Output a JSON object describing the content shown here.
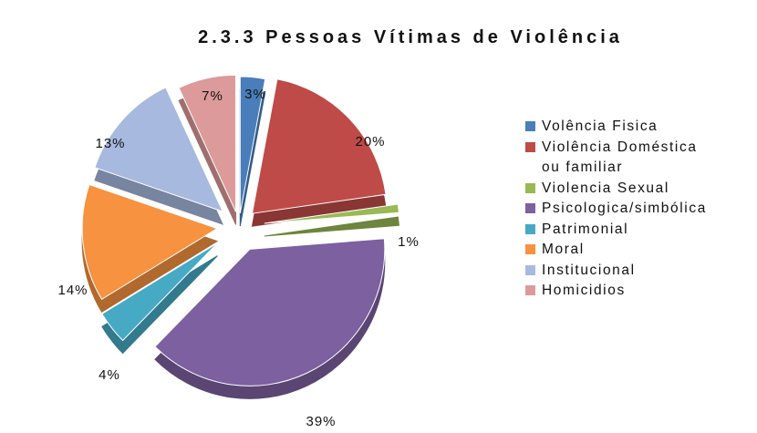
{
  "chart_data": {
    "type": "pie",
    "title": "2.3.3 Pessoas Vítimas de Violência",
    "legend_position": "right",
    "slices": [
      {
        "label": "Volência Fisica",
        "value": 3,
        "display": "3%",
        "color": "#4a7ebb"
      },
      {
        "label": "Violência Doméstica ou familiar",
        "value": 20,
        "display": "20%",
        "color": "#be4b48"
      },
      {
        "label": "Violencia Sexual",
        "value": 1,
        "display": "1%",
        "color": "#98b954"
      },
      {
        "label": "Psicologica/simbólica",
        "value": 39,
        "display": "39%",
        "color": "#7d60a0"
      },
      {
        "label": "Patrimonial",
        "value": 4,
        "display": "4%",
        "color": "#46aac5"
      },
      {
        "label": "Moral",
        "value": 14,
        "display": "14%",
        "color": "#f69240"
      },
      {
        "label": "Institucional",
        "value": 13,
        "display": "13%",
        "color": "#a7b9de"
      },
      {
        "label": "Homicidios",
        "value": 7,
        "display": "7%",
        "color": "#dd9a9a"
      }
    ]
  }
}
